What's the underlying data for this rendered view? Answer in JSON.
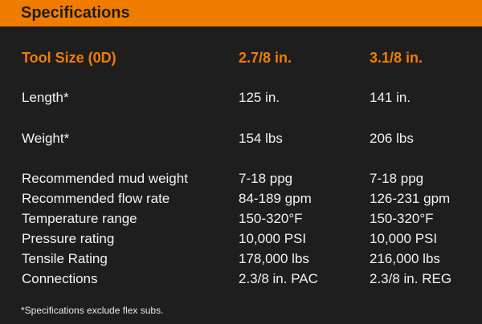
{
  "header": {
    "title": "Specifications"
  },
  "table": {
    "columns": [
      "Tool Size (0D)",
      "2.7/8 in.",
      "3.1/8 in."
    ],
    "rows": [
      [
        "Length*",
        "125 in.",
        "141 in."
      ],
      [
        "Weight*",
        "154 lbs",
        "206 lbs"
      ],
      [
        "Recommended mud weight",
        "7-18 ppg",
        "7-18 ppg"
      ],
      [
        "Recommended flow rate",
        "84-189 gpm",
        "126-231 gpm"
      ],
      [
        "Temperature range",
        "150-320°F",
        "150-320°F"
      ],
      [
        "Pressure rating",
        "10,000 PSI",
        "10,000 PSI"
      ],
      [
        "Tensile Rating",
        "178,000 lbs",
        "216,000 lbs"
      ],
      [
        "Connections",
        "2.3/8 in. PAC",
        "2.3/8 in. REG"
      ]
    ]
  },
  "footnote": "*Specifications exclude flex subs.",
  "colors": {
    "accent": "#f07d00",
    "background": "#1e1e1e",
    "text": "#f2f2f2"
  }
}
